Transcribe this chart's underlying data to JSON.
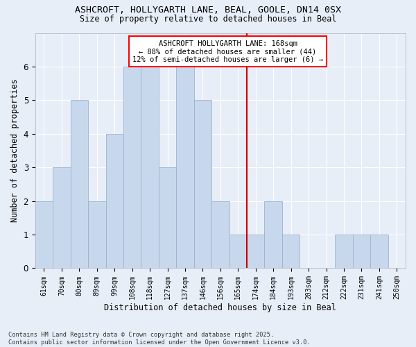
{
  "title1": "ASHCROFT, HOLLYGARTH LANE, BEAL, GOOLE, DN14 0SX",
  "title2": "Size of property relative to detached houses in Beal",
  "xlabel": "Distribution of detached houses by size in Beal",
  "ylabel": "Number of detached properties",
  "categories": [
    "61sqm",
    "70sqm",
    "80sqm",
    "89sqm",
    "99sqm",
    "108sqm",
    "118sqm",
    "127sqm",
    "137sqm",
    "146sqm",
    "156sqm",
    "165sqm",
    "174sqm",
    "184sqm",
    "193sqm",
    "203sqm",
    "212sqm",
    "222sqm",
    "231sqm",
    "241sqm",
    "250sqm"
  ],
  "values": [
    2,
    3,
    5,
    2,
    4,
    6,
    6,
    3,
    6,
    5,
    2,
    1,
    1,
    2,
    1,
    0,
    0,
    1,
    1,
    1,
    0
  ],
  "bar_color": "#c8d8ec",
  "bar_edge_color": "#9ab4cc",
  "annotation_title": "ASHCROFT HOLLYGARTH LANE: 168sqm",
  "annotation_line1": "← 88% of detached houses are smaller (44)",
  "annotation_line2": "12% of semi-detached houses are larger (6) →",
  "ylim": [
    0,
    7
  ],
  "yticks": [
    0,
    1,
    2,
    3,
    4,
    5,
    6,
    7
  ],
  "footer1": "Contains HM Land Registry data © Crown copyright and database right 2025.",
  "footer2": "Contains public sector information licensed under the Open Government Licence v3.0.",
  "bg_color": "#e8eef8",
  "plot_bg_color": "#e8eef8"
}
